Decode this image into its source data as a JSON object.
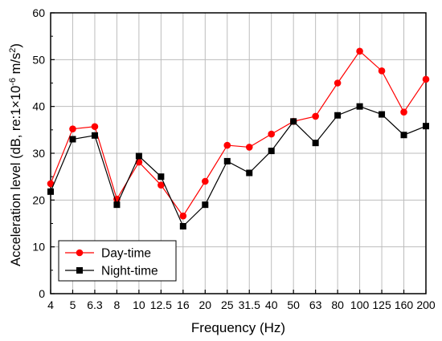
{
  "chart_data": {
    "type": "line",
    "title": "",
    "xlabel": "Frequency (Hz)",
    "ylabel": {
      "prefix": "Acceleration level (dB, re:1×10",
      "exponent": "-6",
      "middle": " m/s",
      "unit_exponent": "2",
      "suffix": ")"
    },
    "categories": [
      "4",
      "5",
      "6.3",
      "8",
      "10",
      "12.5",
      "16",
      "20",
      "25",
      "31.5",
      "40",
      "50",
      "63",
      "80",
      "100",
      "125",
      "160",
      "200"
    ],
    "ylim": [
      0,
      60
    ],
    "yticks": [
      0,
      10,
      20,
      30,
      40,
      50,
      60
    ],
    "grid": true,
    "legend_position": "bottom-left",
    "series": [
      {
        "name": "Day-time",
        "color": "#ff0000",
        "marker": "circle",
        "values": [
          23.5,
          35.2,
          35.7,
          20.2,
          28.1,
          23.2,
          16.6,
          24.0,
          31.7,
          31.3,
          34.1,
          36.8,
          37.9,
          45.0,
          51.8,
          47.6,
          38.8,
          45.8
        ]
      },
      {
        "name": "Night-time",
        "color": "#000000",
        "marker": "square",
        "values": [
          21.8,
          33.0,
          33.8,
          19.0,
          29.4,
          25.0,
          14.4,
          19.0,
          28.3,
          25.8,
          30.5,
          36.8,
          32.2,
          38.1,
          40.0,
          38.3,
          33.9,
          35.8
        ]
      }
    ]
  }
}
